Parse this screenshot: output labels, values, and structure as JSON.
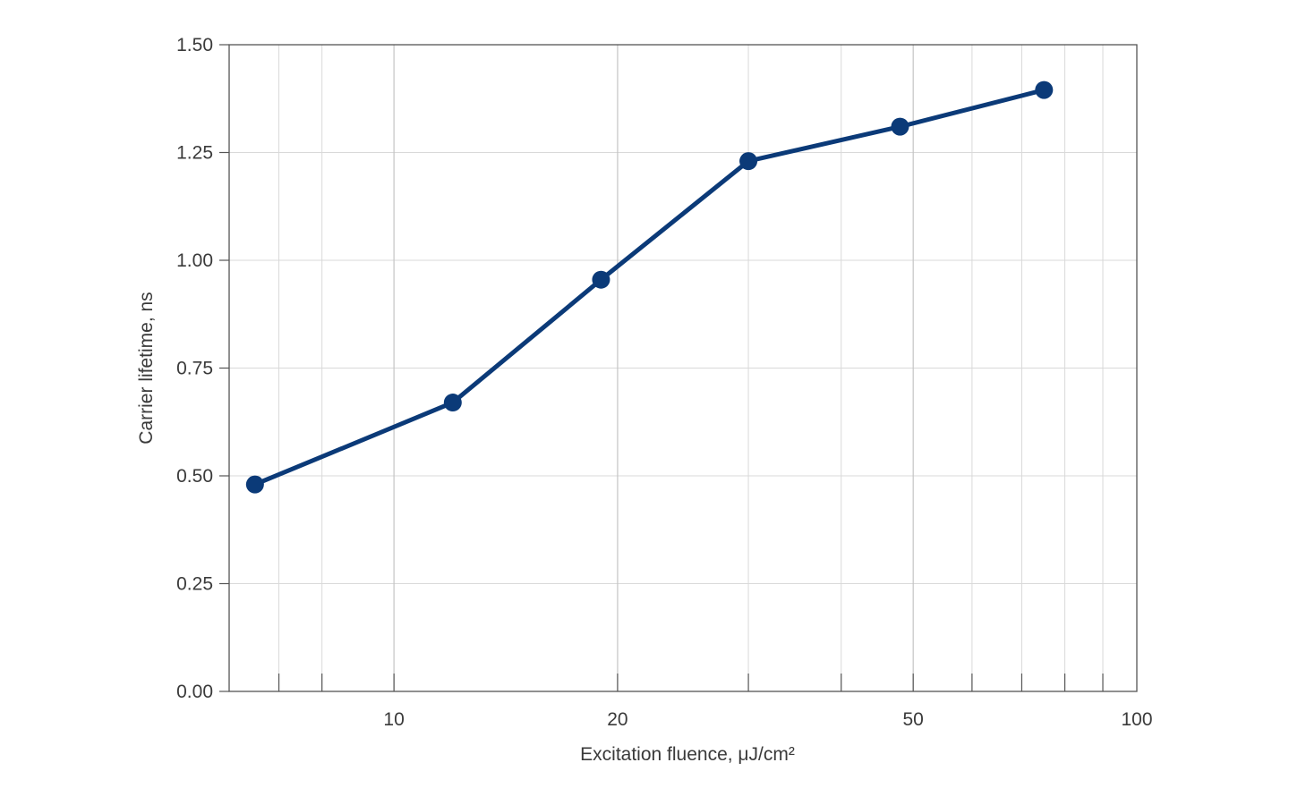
{
  "chart_data": {
    "type": "line",
    "title": "",
    "xlabel": "Excitation fluence, μJ/cm²",
    "ylabel": "Carrier lifetime, ns",
    "x_scale": "log",
    "xlim": [
      6.0,
      100
    ],
    "ylim": [
      0.0,
      1.5
    ],
    "x_major_ticks": [
      10,
      20,
      50,
      100
    ],
    "x_major_tick_labels": [
      "10",
      "20",
      "50",
      "100"
    ],
    "x_minor_ticks": [
      7,
      8,
      30,
      40,
      60,
      70,
      80,
      90
    ],
    "y_ticks": [
      0.0,
      0.25,
      0.5,
      0.75,
      1.0,
      1.25,
      1.5
    ],
    "y_tick_labels": [
      "0.00",
      "0.25",
      "0.50",
      "0.75",
      "1.00",
      "1.25",
      "1.50"
    ],
    "grid": true,
    "series": [
      {
        "x": [
          6.5,
          12,
          19,
          30,
          48,
          75
        ],
        "y": [
          0.48,
          0.67,
          0.955,
          1.23,
          1.31,
          1.395
        ]
      }
    ],
    "colors": {
      "series": "#0b3a78",
      "grid": "#d9d9d9",
      "axis": "#555555",
      "text": "#3a3a3a"
    }
  }
}
